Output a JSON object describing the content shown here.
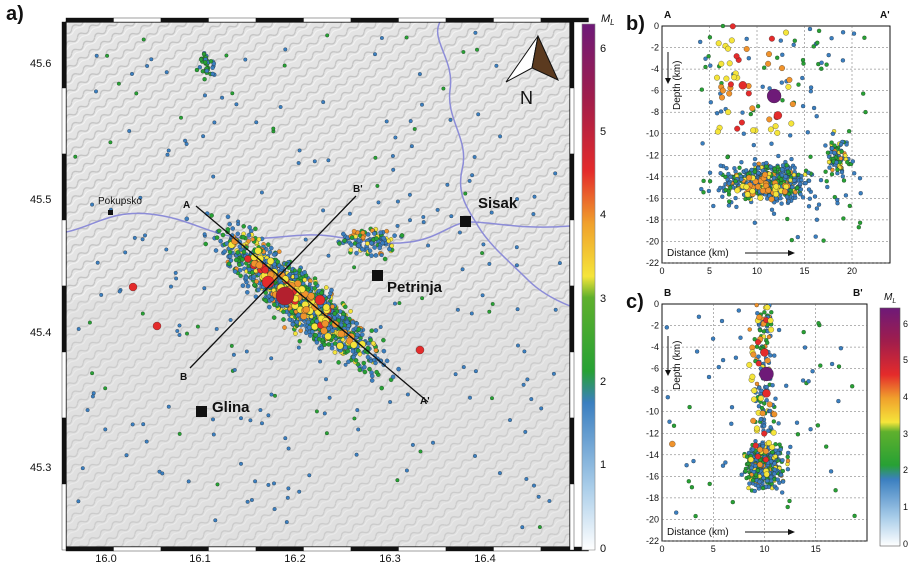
{
  "panels": {
    "a": {
      "label": "a)",
      "lon_ticks": [
        "16.0",
        "16.1",
        "16.2",
        "16.3",
        "16.4"
      ],
      "lat_ticks": [
        "45.6",
        "45.5",
        "45.4",
        "45.3"
      ],
      "towns": [
        "Sisak",
        "Petrinja",
        "Glina"
      ],
      "village": "Pokupsko",
      "profile_labels": {
        "a": "A",
        "a_prime": "A'",
        "b": "B",
        "b_prime": "B'"
      },
      "north": "N"
    },
    "b": {
      "label": "b)",
      "left": "A",
      "right": "A'",
      "x_ticks": [
        "0",
        "5",
        "10",
        "15",
        "20"
      ],
      "y_ticks": [
        "0",
        "-2",
        "-4",
        "-6",
        "-8",
        "-10",
        "-12",
        "-14",
        "-16",
        "-18",
        "-20",
        "-22"
      ],
      "depth_label": "Depth (km)",
      "distance_label": "Distance (km)"
    },
    "c": {
      "label": "c)",
      "left": "B",
      "right": "B'",
      "x_ticks": [
        "0",
        "5",
        "10",
        "15"
      ],
      "y_ticks": [
        "0",
        "-2",
        "-4",
        "-6",
        "-8",
        "-10",
        "-12",
        "-14",
        "-16",
        "-18",
        "-20",
        "-22"
      ],
      "depth_label": "Depth (km)",
      "distance_label": "Distance (km)"
    }
  },
  "colorbar": {
    "title": "M",
    "sub": "L",
    "ticks": [
      "6",
      "5",
      "4",
      "3",
      "2",
      "1",
      "0"
    ],
    "colors": [
      "#6e1a78",
      "#a01d4c",
      "#e42b2b",
      "#f0932c",
      "#f5e53a",
      "#27a134",
      "#3b7fc0",
      "#ffffff"
    ]
  },
  "colorbar_small": {
    "title": "M",
    "sub": "L",
    "ticks": [
      "6",
      "5",
      "4",
      "3",
      "2",
      "1",
      "0"
    ]
  },
  "colors": {
    "mag6": "#6e1a78",
    "mag5": "#b3202e",
    "mag4": "#e42b2b",
    "mag35": "#f0932c",
    "mag3": "#f5e53a",
    "mag2": "#27a134",
    "mag1": "#3b7fc0",
    "river": "#8c8cd8"
  }
}
